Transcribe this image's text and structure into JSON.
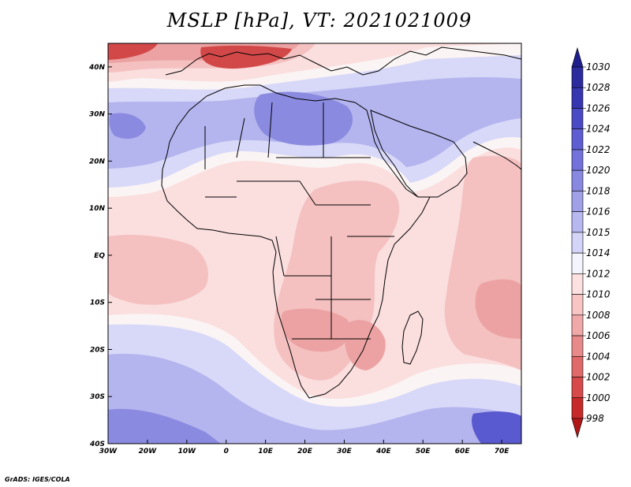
{
  "title": "MSLP [hPa], VT: 2021021009",
  "credit": "GrADS: IGES/COLA",
  "lon_ticks": [
    {
      "value": -30,
      "label": "30W"
    },
    {
      "value": -20,
      "label": "20W"
    },
    {
      "value": -10,
      "label": "10W"
    },
    {
      "value": 0,
      "label": "0"
    },
    {
      "value": 10,
      "label": "10E"
    },
    {
      "value": 20,
      "label": "20E"
    },
    {
      "value": 30,
      "label": "30E"
    },
    {
      "value": 40,
      "label": "40E"
    },
    {
      "value": 50,
      "label": "50E"
    },
    {
      "value": 60,
      "label": "60E"
    },
    {
      "value": 70,
      "label": "70E"
    }
  ],
  "lat_ticks": [
    {
      "value": 40,
      "label": "40N"
    },
    {
      "value": 30,
      "label": "30N"
    },
    {
      "value": 20,
      "label": "20N"
    },
    {
      "value": 10,
      "label": "10N"
    },
    {
      "value": 0,
      "label": "EQ"
    },
    {
      "value": -10,
      "label": "10S"
    },
    {
      "value": -20,
      "label": "20S"
    },
    {
      "value": -30,
      "label": "30S"
    },
    {
      "value": -40,
      "label": "40S"
    }
  ],
  "map_extent": {
    "lon_min": -30,
    "lon_max": 75,
    "lat_min": -40,
    "lat_max": 45
  },
  "colorbar": {
    "levels": [
      "1030",
      "1028",
      "1026",
      "1024",
      "1022",
      "1020",
      "1018",
      "1016",
      "1015",
      "1014",
      "1012",
      "1010",
      "1008",
      "1006",
      "1004",
      "1002",
      "1000",
      "998"
    ],
    "colors": [
      "#2b2b9e",
      "#3636b0",
      "#4a4ac4",
      "#5e5ed2",
      "#7272da",
      "#8888e0",
      "#a0a0e8",
      "#b8b8f0",
      "#d4d4f8",
      "#f4f4ff",
      "#fde0e0",
      "#f8c4c4",
      "#f0a8a8",
      "#e88a8a",
      "#e06a6a",
      "#d84a4a",
      "#c82a2a"
    ],
    "top_arrow_color": "#1e1e8e",
    "bottom_arrow_color": "#b01818"
  },
  "field_colors": {
    "high_dark": "#5a5ad0",
    "high_mid": "#8a8ae0",
    "high_light": "#b4b4ee",
    "high_faint": "#d8d8f8",
    "neutral": "#fbf4f4",
    "low_faint": "#fbdede",
    "low_light": "#f4c0c0",
    "low_mid": "#eca2a2",
    "low_deep": "#d24848",
    "coast": "#000000"
  }
}
